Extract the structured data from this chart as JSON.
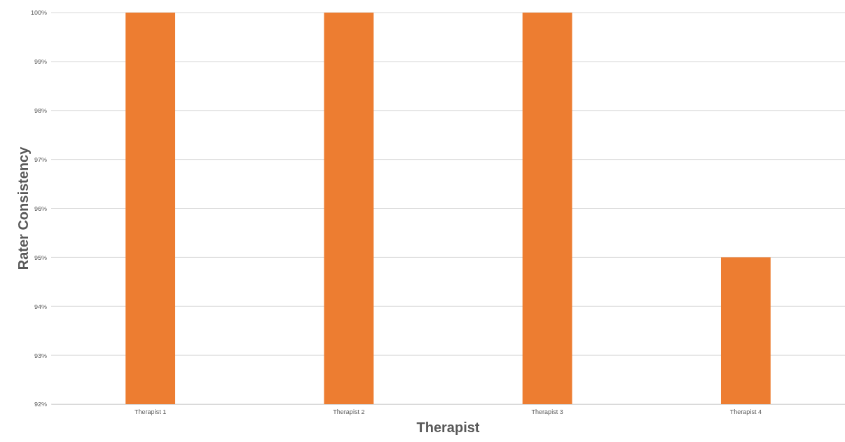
{
  "chart_data": {
    "type": "bar",
    "xlabel": "Therapist",
    "ylabel": "Rater Consistency",
    "categories": [
      "Therapist 1",
      "Therapist 2",
      "Therapist 3",
      "Therapist 4"
    ],
    "values": [
      100,
      100,
      100,
      95
    ],
    "color": "#ed7d31",
    "ylim": [
      92,
      100
    ],
    "yticks": [
      {
        "value": 92,
        "label": "92%"
      },
      {
        "value": 93,
        "label": "93%"
      },
      {
        "value": 94,
        "label": "94%"
      },
      {
        "value": 95,
        "label": "95%"
      },
      {
        "value": 96,
        "label": "96%"
      },
      {
        "value": 97,
        "label": "97%"
      },
      {
        "value": 98,
        "label": "98%"
      },
      {
        "value": 99,
        "label": "99%"
      },
      {
        "value": 100,
        "label": "100%"
      }
    ],
    "grid": "y"
  }
}
